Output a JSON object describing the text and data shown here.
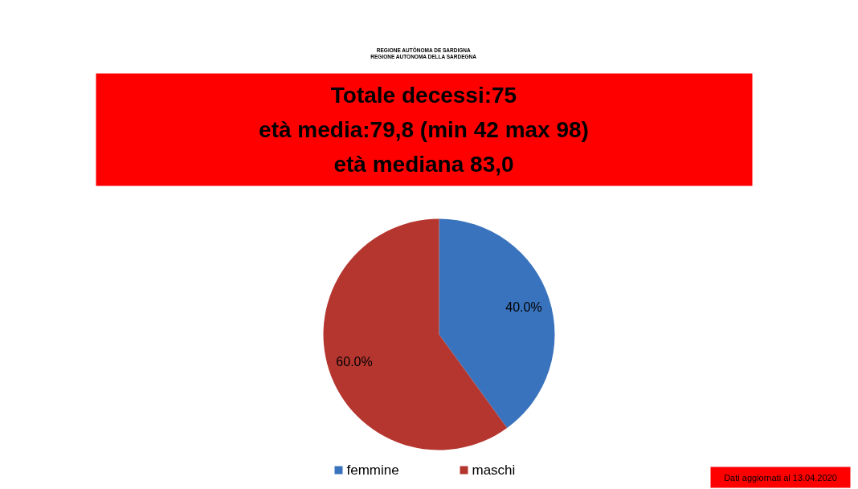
{
  "chart_data": {
    "type": "pie",
    "title": "Totale decessi:75\netà media:79,8 (min 42 max 98)\netà mediana 83,0",
    "categories": [
      "femmine",
      "maschi"
    ],
    "values": [
      40,
      60
    ],
    "colors": [
      "#3a73bd",
      "#b5362f"
    ],
    "value_labels": [
      "40.0%",
      "60.0%"
    ],
    "legend": "bottom",
    "annotations": [
      "REGIONE AUTÒNOMA DE SARDIGNA",
      "REGIONE AUTONOMA DELLA SARDEGNA",
      "Dati aggiornati al 13.04.2020"
    ]
  }
}
